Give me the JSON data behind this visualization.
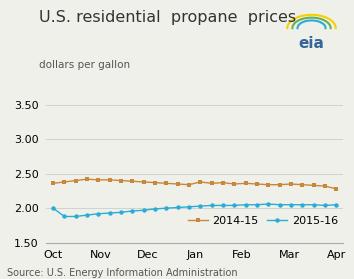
{
  "title": "U.S. residential  propane  prices",
  "ylabel": "dollars per gallon",
  "source": "Source: U.S. Energy Information Administration",
  "ylim": [
    1.5,
    3.6
  ],
  "yticks": [
    1.5,
    2.0,
    2.5,
    3.0,
    3.5
  ],
  "xtick_labels": [
    "Oct",
    "Nov",
    "Dec",
    "Jan",
    "Feb",
    "Mar",
    "Apr"
  ],
  "series_2014_15": [
    2.36,
    2.38,
    2.4,
    2.42,
    2.41,
    2.41,
    2.4,
    2.39,
    2.38,
    2.37,
    2.36,
    2.35,
    2.34,
    2.38,
    2.36,
    2.37,
    2.35,
    2.36,
    2.35,
    2.34,
    2.34,
    2.35,
    2.34,
    2.33,
    2.32,
    2.28
  ],
  "series_2015_16": [
    2.0,
    1.88,
    1.88,
    1.9,
    1.92,
    1.93,
    1.94,
    1.96,
    1.97,
    1.99,
    2.0,
    2.01,
    2.02,
    2.03,
    2.04,
    2.04,
    2.04,
    2.05,
    2.05,
    2.06,
    2.05,
    2.05,
    2.05,
    2.05,
    2.04,
    2.05
  ],
  "color_2014_15": "#c8873a",
  "color_2015_16": "#2aadd4",
  "legend_labels": [
    "2014-15",
    "2015-16"
  ],
  "bg_color": "#f0f0eb",
  "plot_bg_color": "#f0f0eb",
  "grid_color": "#cccccc",
  "title_fontsize": 11.5,
  "label_fontsize": 7.5,
  "tick_fontsize": 8,
  "source_fontsize": 7,
  "legend_fontsize": 8
}
